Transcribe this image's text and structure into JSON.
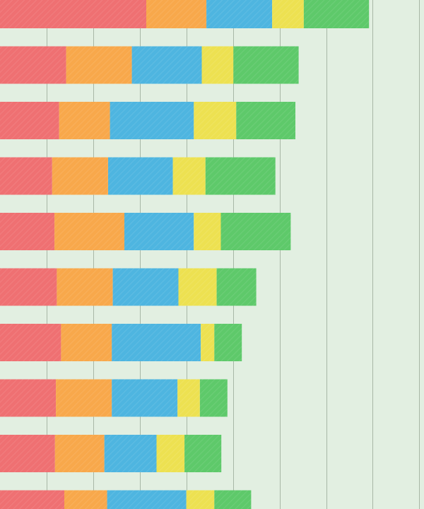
{
  "chart_data": {
    "type": "bar",
    "orientation": "horizontal",
    "stacked": true,
    "grid": true,
    "legend": "none",
    "colors": {
      "background": "#e2efe1",
      "gridline": "#a8b7a6",
      "series": [
        "#ef7072",
        "#f8a84b",
        "#4eb5e0",
        "#ede151",
        "#5ec96a"
      ]
    },
    "xlim": [
      0,
      9.1
    ],
    "gridlines": [
      1,
      2,
      3,
      4,
      5,
      6,
      7,
      8,
      9
    ],
    "rows": 10,
    "series": [
      {
        "values": [
          3.14,
          1.42,
          1.27,
          1.12,
          1.17,
          1.22,
          1.31,
          1.2,
          1.18,
          1.38
        ]
      },
      {
        "values": [
          1.29,
          1.41,
          1.09,
          1.2,
          1.5,
          1.2,
          1.09,
          1.2,
          1.06,
          0.92
        ]
      },
      {
        "values": [
          1.41,
          1.5,
          1.8,
          1.39,
          1.49,
          1.41,
          1.91,
          1.41,
          1.12,
          1.7
        ]
      },
      {
        "values": [
          0.68,
          0.68,
          0.91,
          0.7,
          0.58,
          0.82,
          0.29,
          0.48,
          0.6,
          0.6
        ]
      },
      {
        "values": [
          1.4,
          1.4,
          1.27,
          1.5,
          1.5,
          0.85,
          0.59,
          0.59,
          0.79,
          0.79
        ]
      }
    ]
  }
}
